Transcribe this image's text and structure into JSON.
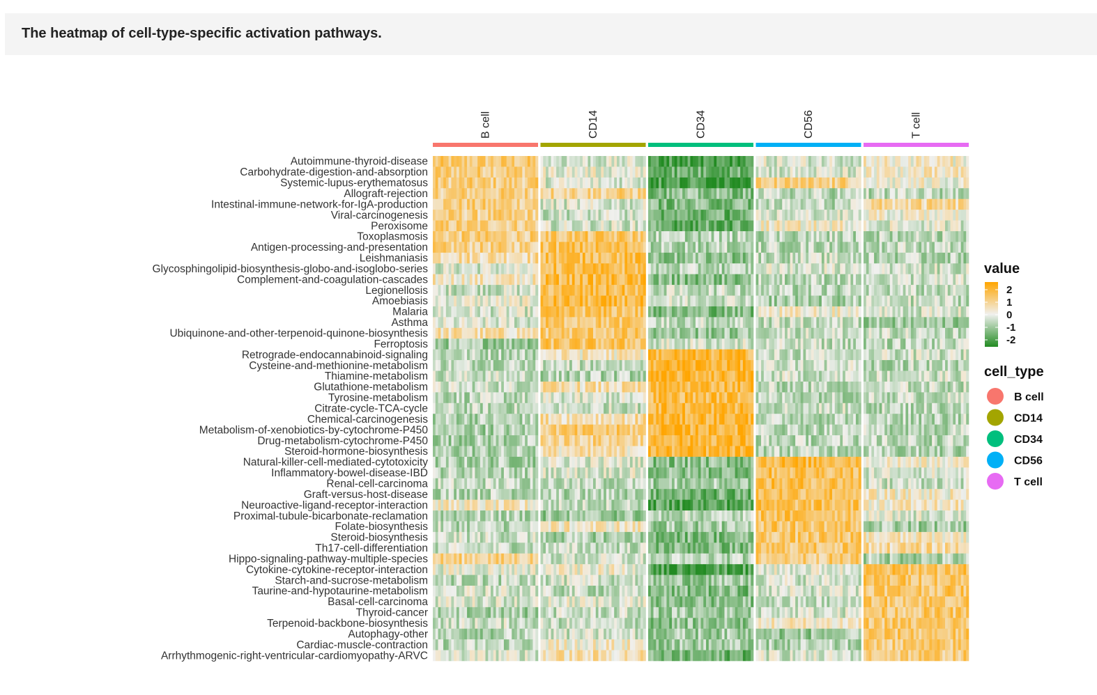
{
  "caption": "The heatmap of cell-type-specific activation pathways.",
  "chart_data": {
    "type": "heatmap",
    "title": "",
    "columns": [
      "B cell",
      "CD14",
      "CD34",
      "CD56",
      "T cell"
    ],
    "column_colors": [
      "#F8766D",
      "#A3A500",
      "#00BF7D",
      "#00B0F6",
      "#E76BF3"
    ],
    "rows": [
      "Autoimmune-thyroid-disease",
      "Carbohydrate-digestion-and-absorption",
      "Systemic-lupus-erythematosus",
      "Allograft-rejection",
      "Intestinal-immune-network-for-IgA-production",
      "Viral-carcinogenesis",
      "Peroxisome",
      "Toxoplasmosis",
      "Antigen-processing-and-presentation",
      "Leishmaniasis",
      "Glycosphingolipid-biosynthesis-globo-and-isoglobo-series",
      "Complement-and-coagulation-cascades",
      "Legionellosis",
      "Amoebiasis",
      "Malaria",
      "Asthma",
      "Ubiquinone-and-other-terpenoid-quinone-biosynthesis",
      "Ferroptosis",
      "Retrograde-endocannabinoid-signaling",
      "Cysteine-and-methionine-metabolism",
      "Thiamine-metabolism",
      "Glutathione-metabolism",
      "Tyrosine-metabolism",
      "Citrate-cycle-TCA-cycle",
      "Chemical-carcinogenesis",
      "Metabolism-of-xenobiotics-by-cytochrome-P450",
      "Drug-metabolism-cytochrome-P450",
      "Steroid-hormone-biosynthesis",
      "Natural-killer-cell-mediated-cytotoxicity",
      "Inflammatory-bowel-disease-IBD",
      "Renal-cell-carcinoma",
      "Graft-versus-host-disease",
      "Neuroactive-ligand-receptor-interaction",
      "Proximal-tubule-bicarbonate-reclamation",
      "Folate-biosynthesis",
      "Steroid-biosynthesis",
      "Th17-cell-differentiation",
      "Hippo-signaling-pathway-multiple-species",
      "Cytokine-cytokine-receptor-interaction",
      "Starch-and-sucrose-metabolism",
      "Taurine-and-hypotaurine-metabolism",
      "Basal-cell-carcinoma",
      "Thyroid-cancer",
      "Terpenoid-backbone-biosynthesis",
      "Autophagy-other",
      "Cardiac-muscle-contraction",
      "Arrhythmogenic-right-ventricular-cardiomyopathy-ARVC"
    ],
    "mean_values": [
      [
        1.2,
        -0.3,
        -2.0,
        -0.2,
        0.3
      ],
      [
        1.2,
        0.0,
        -1.5,
        -0.3,
        0.3
      ],
      [
        1.1,
        -0.2,
        -2.0,
        1.0,
        0.1
      ],
      [
        1.1,
        1.0,
        -1.2,
        -0.6,
        -0.6
      ],
      [
        1.1,
        -0.3,
        -1.3,
        -0.6,
        0.8
      ],
      [
        1.0,
        -0.4,
        -1.5,
        -0.3,
        0.1
      ],
      [
        1.1,
        -0.3,
        -1.6,
        0.3,
        -0.2
      ],
      [
        1.1,
        1.3,
        -0.7,
        -0.6,
        -0.6
      ],
      [
        1.0,
        1.5,
        -0.7,
        -0.6,
        -0.5
      ],
      [
        0.8,
        1.6,
        -1.1,
        -0.5,
        -0.7
      ],
      [
        -0.3,
        1.6,
        -0.7,
        -0.2,
        -0.4
      ],
      [
        0.4,
        1.7,
        -1.2,
        -0.6,
        -0.4
      ],
      [
        -0.4,
        1.6,
        -0.5,
        -0.7,
        -0.6
      ],
      [
        0.0,
        1.7,
        -0.3,
        -0.8,
        -0.5
      ],
      [
        -0.3,
        1.4,
        -1.3,
        0.2,
        -0.3
      ],
      [
        -0.3,
        1.3,
        -0.5,
        -0.5,
        -1.0
      ],
      [
        0.6,
        1.3,
        -1.0,
        -0.4,
        -0.5
      ],
      [
        -0.9,
        1.4,
        -0.3,
        -0.5,
        -0.6
      ],
      [
        -0.6,
        0.4,
        1.8,
        -0.5,
        -0.4
      ],
      [
        -0.5,
        -0.5,
        2.0,
        -0.4,
        -0.6
      ],
      [
        -0.4,
        -0.7,
        1.9,
        -0.4,
        -0.4
      ],
      [
        -0.4,
        0.6,
        1.8,
        -0.6,
        -0.5
      ],
      [
        -0.6,
        -0.3,
        1.7,
        -0.6,
        -0.5
      ],
      [
        -0.6,
        -0.4,
        1.8,
        -0.4,
        -0.6
      ],
      [
        -0.7,
        0.7,
        1.9,
        -0.6,
        -0.6
      ],
      [
        -0.8,
        1.2,
        1.9,
        -0.6,
        -0.6
      ],
      [
        -0.8,
        1.0,
        1.9,
        -0.6,
        -0.6
      ],
      [
        -0.8,
        0.5,
        1.8,
        -0.6,
        -0.8
      ],
      [
        -0.8,
        -0.2,
        -1.2,
        1.8,
        0.2
      ],
      [
        -0.6,
        -0.2,
        -1.2,
        1.6,
        -0.2
      ],
      [
        -0.5,
        -0.6,
        -0.9,
        1.6,
        -0.4
      ],
      [
        -0.6,
        -0.7,
        -1.5,
        1.6,
        0.3
      ],
      [
        0.3,
        -0.5,
        -1.8,
        1.5,
        0.4
      ],
      [
        -0.7,
        -1.0,
        -0.6,
        1.5,
        -0.2
      ],
      [
        -0.6,
        0.4,
        -0.9,
        1.4,
        -0.9
      ],
      [
        -0.4,
        -0.8,
        -1.3,
        1.3,
        0.4
      ],
      [
        -0.5,
        -0.5,
        -1.3,
        1.3,
        0.8
      ],
      [
        1.0,
        -0.4,
        -0.7,
        1.2,
        -0.8
      ],
      [
        0.0,
        0.1,
        -1.9,
        -0.1,
        1.5
      ],
      [
        -0.6,
        -0.4,
        -1.0,
        -0.3,
        1.4
      ],
      [
        -0.3,
        -0.6,
        -1.3,
        -0.3,
        1.4
      ],
      [
        -0.2,
        -0.1,
        -1.2,
        -0.6,
        1.4
      ],
      [
        -0.9,
        -0.5,
        -0.9,
        -0.3,
        1.3
      ],
      [
        -0.4,
        -0.5,
        -1.1,
        0.4,
        1.3
      ],
      [
        -0.7,
        -0.4,
        -0.9,
        -1.0,
        1.3
      ],
      [
        -0.6,
        0.3,
        -0.9,
        -0.8,
        1.2
      ],
      [
        -0.2,
        0.6,
        -1.5,
        -0.3,
        1.2
      ]
    ],
    "color_scale": {
      "low": "#228B22",
      "mid": "#F0F0EE",
      "high": "#FFA500",
      "range": [
        -2.5,
        2.5
      ]
    },
    "legend": {
      "value_title": "value",
      "value_ticks": [
        "2",
        "1",
        "0",
        "-1",
        "-2"
      ],
      "cell_type_title": "cell_type",
      "cell_type_items": [
        "B cell",
        "CD14",
        "CD34",
        "CD56",
        "T cell"
      ]
    }
  }
}
